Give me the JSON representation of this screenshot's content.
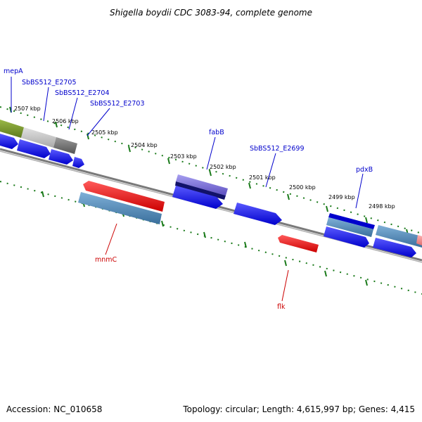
{
  "title": "Shigella boydii CDC 3083-94, complete genome",
  "footer": {
    "accession": "Accession: NC_010658",
    "topology": "Topology: circular; Length: 4,615,997 bp; Genes: 4,415"
  },
  "ticks": [
    {
      "label": "2507 kbp"
    },
    {
      "label": "2506 kbp"
    },
    {
      "label": "2505 kbp"
    },
    {
      "label": "2504 kbp"
    },
    {
      "label": "2503 kbp"
    },
    {
      "label": "2502 kbp"
    },
    {
      "label": "2501 kbp"
    },
    {
      "label": "2500 kbp"
    },
    {
      "label": "2499 kbp"
    },
    {
      "label": "2498 kbp"
    }
  ],
  "genes": [
    {
      "name": "mepA",
      "color": "#0000cc"
    },
    {
      "name": "SbBS512_E2705",
      "color": "#0000cc"
    },
    {
      "name": "SbBS512_E2704",
      "color": "#0000cc"
    },
    {
      "name": "SbBS512_E2703",
      "color": "#0000cc"
    },
    {
      "name": "fabB",
      "color": "#0000cc"
    },
    {
      "name": "SbBS512_E2699",
      "color": "#0000cc"
    },
    {
      "name": "pdxB",
      "color": "#0000cc"
    },
    {
      "name": "mnmC",
      "color": "#cc0000"
    },
    {
      "name": "flk",
      "color": "#cc0000"
    }
  ],
  "colors": {
    "forward_cds": "#0000ee",
    "reverse_cds": "#ee0000",
    "backbone": "#808080",
    "ruler": "#1a7a1a",
    "feature_olive": "#6b8e23",
    "feature_steelblue": "#4682b4",
    "feature_purple": "#6a5acd"
  }
}
